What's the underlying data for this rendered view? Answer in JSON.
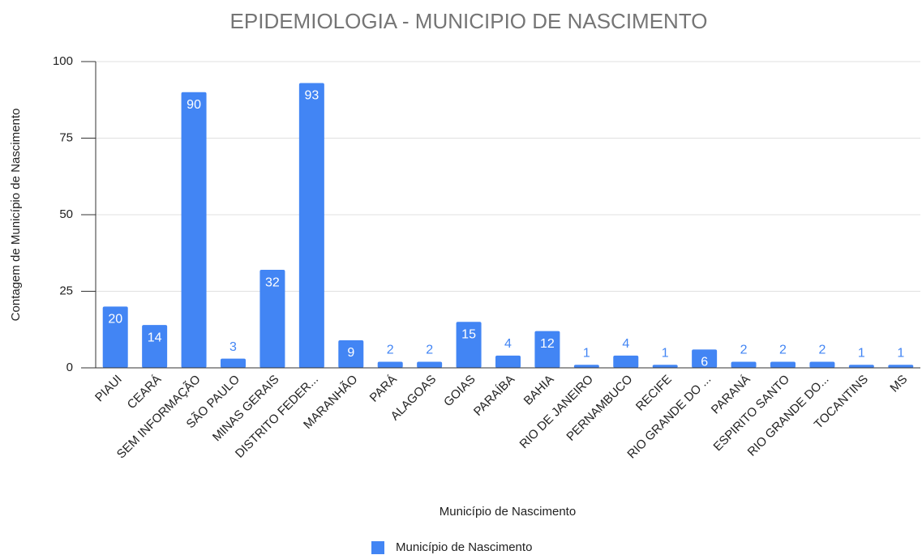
{
  "chart_data": {
    "type": "bar",
    "title": "EPIDEMIOLOGIA - MUNICIPIO DE NASCIMENTO",
    "x_label": "Município de Nascimento",
    "y_label": "Contagem de Município de Nascimento",
    "categories": [
      "PIAUI",
      "CEARÁ",
      "SEM INFORMAÇÃO",
      "SÃO PAULO",
      "MINAS GERAIS",
      "DISTRITO FEDER...",
      "MARANHÃO",
      "PARÁ",
      "ALAGOAS",
      "GOIAS",
      "PARAÍBA",
      "BAHIA",
      "RIO DE JANEIRO",
      "PERNAMBUCO",
      "RECIFE",
      "RIO GRANDE DO ...",
      "PARANÁ",
      "ESPIRITO SANTO",
      "RIO GRANDE DO...",
      "TOCANTINS",
      "MS"
    ],
    "series": [
      {
        "name": "Município de Nascimento",
        "color": "#4285f4",
        "values": [
          20,
          14,
          90,
          3,
          32,
          93,
          9,
          2,
          2,
          15,
          4,
          12,
          1,
          4,
          1,
          6,
          2,
          2,
          2,
          1,
          1
        ]
      }
    ],
    "ylim": [
      0,
      100
    ],
    "yticks": [
      0,
      25,
      50,
      75,
      100
    ],
    "grid": true,
    "data_labels": true,
    "legend": "bottom"
  }
}
